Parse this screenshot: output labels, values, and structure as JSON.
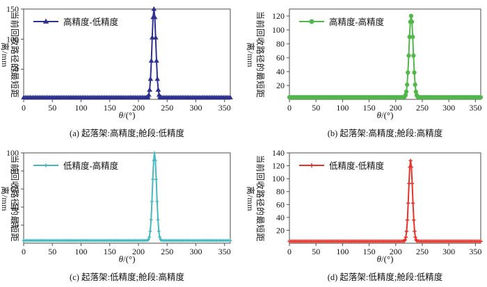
{
  "figure": {
    "background": "#ffffff",
    "frame_color": "#4d4d4d",
    "xlabel_theta": "θ",
    "xlabel_unit": "/(°)",
    "ylabel": "当前回收路径的最短距离/mm"
  },
  "chart_data": [
    {
      "id": "a",
      "type": "line",
      "legend": "高精度-低精度",
      "caption": "(a) 起落架:高精度;舱段:低精度",
      "color": "#2e3192",
      "marker": "triangle",
      "marker_size": 4.0,
      "xlabel": "θ/(°)",
      "ylabel": "当前回收路径的最短距离/mm",
      "x_range": [
        0,
        360
      ],
      "xlim": [
        0,
        360
      ],
      "ylim": [
        0,
        150
      ],
      "xticks": [
        0,
        50,
        100,
        150,
        200,
        250,
        300,
        350
      ],
      "yticks": [
        50,
        100,
        150
      ],
      "baseline_y": 3,
      "baseline_step": 3,
      "peak_center": 227,
      "peak_points": [
        [
          215,
          3.3
        ],
        [
          216.5,
          4.2
        ],
        [
          218,
          7.4
        ],
        [
          219.5,
          15.8
        ],
        [
          221,
          33.8
        ],
        [
          222.5,
          64
        ],
        [
          224,
          102.5
        ],
        [
          225.5,
          136.3
        ],
        [
          227,
          150
        ],
        [
          228.5,
          136.3
        ],
        [
          230,
          102.5
        ],
        [
          231.5,
          64
        ],
        [
          233,
          33.8
        ],
        [
          234.5,
          15.8
        ],
        [
          236,
          7.4
        ],
        [
          237.5,
          4.2
        ],
        [
          239,
          3.3
        ]
      ]
    },
    {
      "id": "b",
      "type": "line",
      "legend": "高精度-高精度",
      "caption": "(b) 起落架:高精度;舱段:高精度",
      "color": "#50b848",
      "marker": "circle",
      "marker_size": 3.1,
      "xlabel": "θ/(°)",
      "ylabel": "当前回收路径的最短距离/mm",
      "x_range": [
        0,
        360
      ],
      "xlim": [
        0,
        360
      ],
      "ylim": [
        0,
        130
      ],
      "xticks": [
        0,
        50,
        100,
        150,
        200,
        250,
        300,
        350
      ],
      "yticks": [
        20,
        40,
        60,
        80,
        100,
        120
      ],
      "baseline_y": 3,
      "baseline_step": 3,
      "peak_center": 229,
      "peak_points": [
        [
          215.5,
          3.2
        ],
        [
          217,
          4
        ],
        [
          218.5,
          6.1
        ],
        [
          220,
          11
        ],
        [
          221.5,
          21.2
        ],
        [
          223,
          38.6
        ],
        [
          224.5,
          62.9
        ],
        [
          226,
          89.9
        ],
        [
          227.5,
          111.6
        ],
        [
          229,
          120
        ],
        [
          230.5,
          111.6
        ],
        [
          232,
          89.9
        ],
        [
          233.5,
          62.9
        ],
        [
          235,
          38.6
        ],
        [
          236.5,
          21.2
        ],
        [
          238,
          11
        ],
        [
          239.5,
          6.1
        ],
        [
          241,
          4
        ],
        [
          242.5,
          3.2
        ]
      ]
    },
    {
      "id": "c",
      "type": "line",
      "legend": "低精度-高精度",
      "caption": "(c) 起落架:低精度;舱段:高精度",
      "color": "#45b8c0",
      "marker": "plus",
      "marker_size": 2.3,
      "xlabel": "θ/(°)",
      "ylabel": "当前回收路径的最短距离/mm",
      "x_range": [
        0,
        360
      ],
      "xlim": [
        0,
        360
      ],
      "ylim": [
        0,
        100
      ],
      "xticks": [
        0,
        50,
        100,
        150,
        200,
        250,
        300,
        350
      ],
      "yticks": [
        20,
        40,
        60,
        80,
        100
      ],
      "baseline_y": 3,
      "baseline_step": 3,
      "peak_center": 228,
      "peak_points": [
        [
          216,
          3.2
        ],
        [
          217.5,
          4.2
        ],
        [
          219,
          6.8
        ],
        [
          220.5,
          13.2
        ],
        [
          222,
          26
        ],
        [
          223.5,
          46.2
        ],
        [
          225,
          70.7
        ],
        [
          226.5,
          91.6
        ],
        [
          228,
          100
        ],
        [
          229.5,
          91.6
        ],
        [
          231,
          70.7
        ],
        [
          232.5,
          46.2
        ],
        [
          234,
          26
        ],
        [
          235.5,
          13.2
        ],
        [
          237,
          6.8
        ],
        [
          238.5,
          4.2
        ],
        [
          240,
          3.2
        ]
      ]
    },
    {
      "id": "d",
      "type": "line",
      "legend": "低精度-低精度",
      "caption": "(d) 起落架:低精度;舱段:低精度",
      "color": "#e63229",
      "marker": "plus",
      "marker_size": 2.7,
      "xlabel": "θ/(°)",
      "ylabel": "当前回收路径的最短距离/mm",
      "x_range": [
        0,
        360
      ],
      "xlim": [
        0,
        360
      ],
      "ylim": [
        0,
        140
      ],
      "xticks": [
        0,
        50,
        100,
        150,
        200,
        250,
        300,
        350
      ],
      "yticks": [
        20,
        40,
        60,
        80,
        100,
        120,
        140
      ],
      "baseline_y": 3,
      "baseline_step": 3,
      "peak_center": 228,
      "peak_points": [
        [
          216,
          3.6
        ],
        [
          217.5,
          5.1
        ],
        [
          219,
          9.3
        ],
        [
          220.5,
          18.6
        ],
        [
          222,
          36
        ],
        [
          223.5,
          62.1
        ],
        [
          225,
          92.6
        ],
        [
          226.5,
          118
        ],
        [
          228,
          128
        ],
        [
          229.5,
          118
        ],
        [
          231,
          92.6
        ],
        [
          232.5,
          62.1
        ],
        [
          234,
          36
        ],
        [
          235.5,
          18.6
        ],
        [
          237,
          9.3
        ],
        [
          238.5,
          5.1
        ],
        [
          240,
          3.6
        ]
      ]
    }
  ]
}
